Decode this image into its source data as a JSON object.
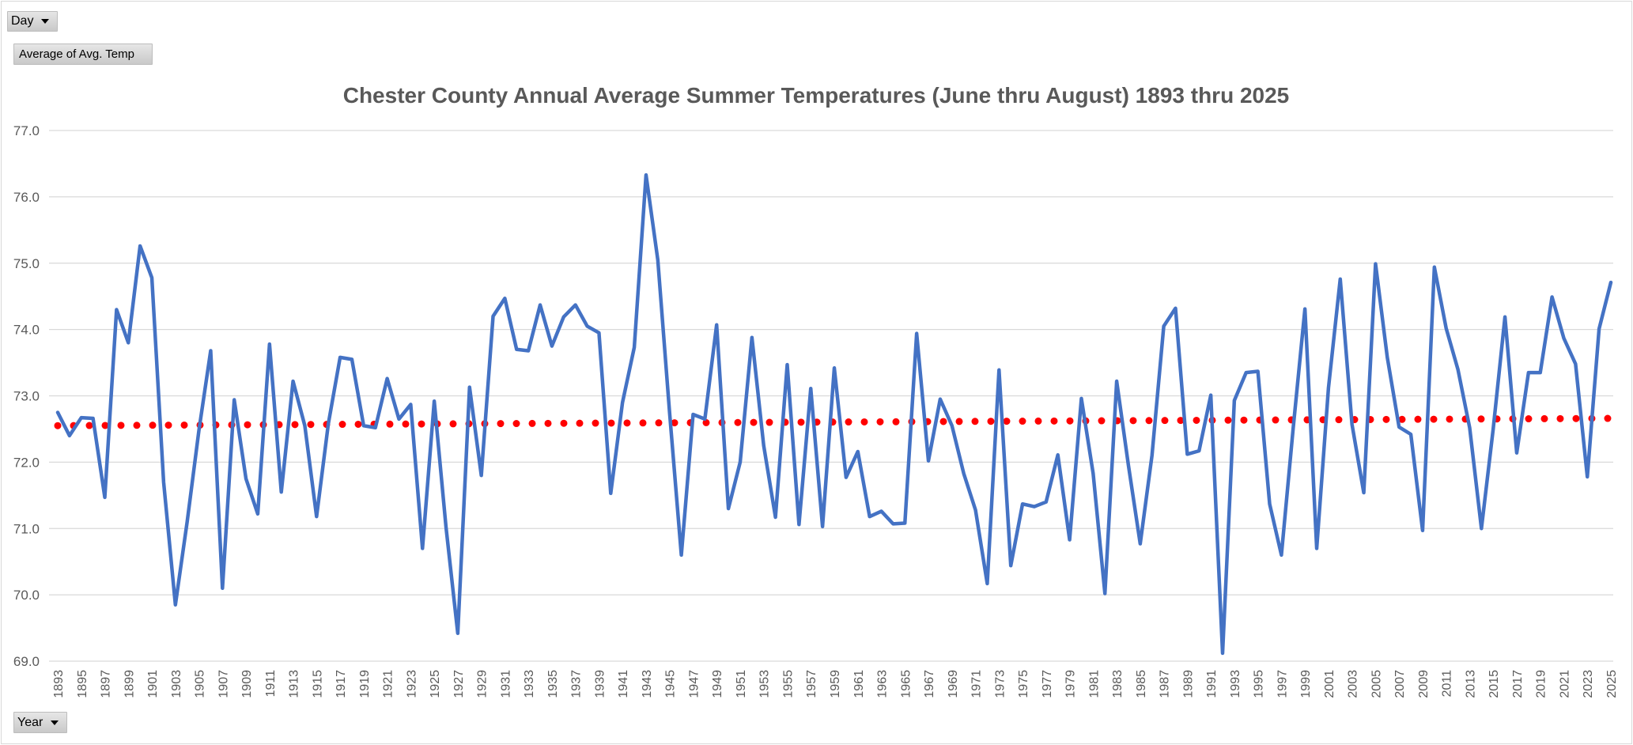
{
  "pivot_buttons": {
    "day": "Day",
    "values": "Average of Avg. Temp",
    "year": "Year"
  },
  "chart_data": {
    "type": "line",
    "title": "Chester County Annual Average Summer Temperatures (June thru August) 1893 thru 2025",
    "xlabel": "",
    "ylabel": "",
    "ylim": [
      69.0,
      77.0
    ],
    "yticks": [
      "69.0",
      "70.0",
      "71.0",
      "72.0",
      "73.0",
      "74.0",
      "75.0",
      "76.0",
      "77.0"
    ],
    "grid": true,
    "legend": "none",
    "x": [
      1893,
      1894,
      1895,
      1896,
      1897,
      1898,
      1899,
      1900,
      1901,
      1902,
      1903,
      1904,
      1905,
      1906,
      1907,
      1908,
      1909,
      1910,
      1911,
      1912,
      1913,
      1914,
      1915,
      1916,
      1917,
      1918,
      1919,
      1920,
      1921,
      1922,
      1923,
      1924,
      1925,
      1926,
      1927,
      1928,
      1929,
      1930,
      1931,
      1932,
      1933,
      1934,
      1935,
      1936,
      1937,
      1938,
      1939,
      1940,
      1941,
      1942,
      1943,
      1944,
      1945,
      1946,
      1947,
      1948,
      1949,
      1950,
      1951,
      1952,
      1953,
      1954,
      1955,
      1956,
      1957,
      1958,
      1959,
      1960,
      1961,
      1962,
      1963,
      1964,
      1965,
      1966,
      1967,
      1968,
      1969,
      1970,
      1971,
      1972,
      1973,
      1974,
      1975,
      1976,
      1977,
      1978,
      1979,
      1980,
      1981,
      1982,
      1983,
      1984,
      1985,
      1986,
      1987,
      1988,
      1989,
      1990,
      1991,
      1992,
      1993,
      1994,
      1995,
      1996,
      1997,
      1998,
      1999,
      2000,
      2001,
      2002,
      2003,
      2004,
      2005,
      2006,
      2007,
      2008,
      2009,
      2010,
      2011,
      2012,
      2013,
      2014,
      2015,
      2016,
      2017,
      2018,
      2019,
      2020,
      2021,
      2022,
      2023,
      2024,
      2025
    ],
    "series": [
      {
        "values": [
          72.75,
          72.4,
          72.67,
          72.66,
          71.47,
          74.3,
          73.8,
          75.26,
          74.78,
          71.7,
          69.85,
          71.1,
          72.48,
          73.68,
          70.1,
          72.94,
          71.75,
          71.22,
          73.78,
          71.55,
          73.22,
          72.55,
          71.18,
          72.58,
          73.58,
          73.55,
          72.55,
          72.52,
          73.26,
          72.65,
          72.87,
          70.7,
          72.92,
          71.02,
          69.42,
          73.13,
          71.8,
          74.2,
          74.47,
          73.7,
          73.68,
          74.37,
          73.75,
          74.19,
          74.37,
          74.05,
          73.95,
          71.53,
          72.9,
          73.73,
          76.33,
          75.05,
          72.75,
          70.6,
          72.72,
          72.65,
          74.07,
          71.3,
          72.0,
          73.88,
          72.25,
          71.17,
          73.47,
          71.06,
          73.11,
          71.03,
          73.42,
          71.77,
          72.16,
          71.18,
          71.26,
          71.07,
          71.08,
          73.94,
          72.02,
          72.95,
          72.55,
          71.83,
          71.28,
          70.17,
          73.39,
          70.44,
          71.37,
          71.33,
          71.4,
          72.11,
          70.83,
          72.96,
          71.83,
          70.02,
          73.22,
          71.95,
          70.77,
          72.1,
          74.05,
          74.32,
          72.12,
          72.17,
          73.01,
          69.12,
          72.93,
          73.35,
          73.37,
          71.37,
          70.6,
          72.51,
          74.31,
          70.7,
          73.12,
          74.76,
          72.57,
          71.54,
          74.99,
          73.58,
          72.53,
          72.42,
          70.97,
          74.94,
          74.02,
          73.4,
          72.52,
          71.0,
          72.5,
          74.19,
          72.14,
          73.35,
          73.35,
          74.49,
          73.87,
          73.48,
          71.78,
          74.01,
          74.71
        ]
      }
    ],
    "trendline": {
      "type": "linear",
      "start": 72.55,
      "end": 72.66
    },
    "colors": {
      "series": "#4472C4",
      "trendline": "#FF0000",
      "grid": "#d9d9d9",
      "text": "#595959"
    }
  }
}
